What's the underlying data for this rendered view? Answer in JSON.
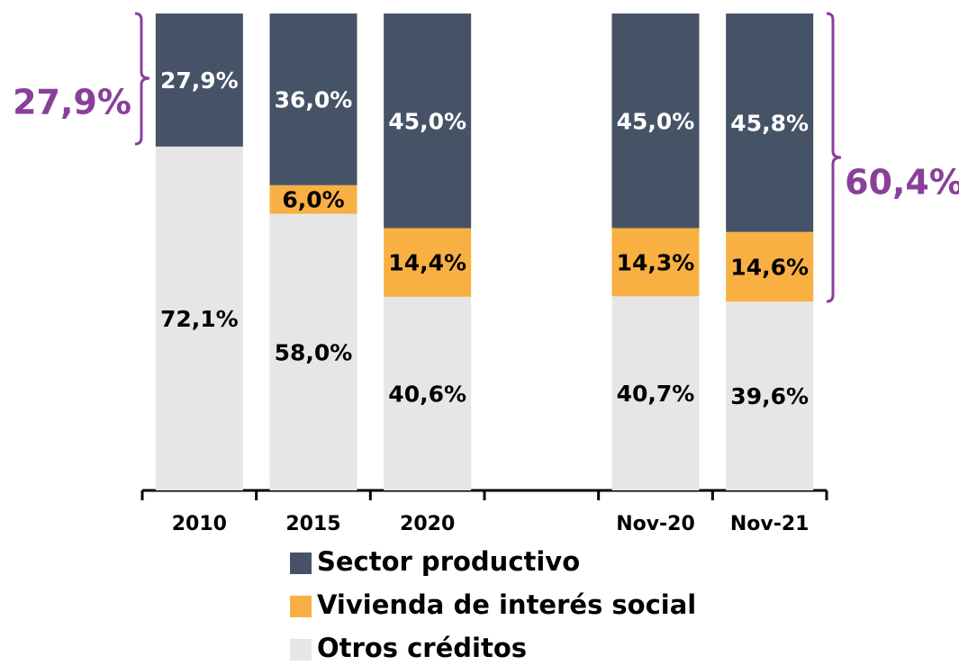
{
  "chart_data": {
    "type": "stacked_bar",
    "categories": [
      "2010",
      "2015",
      "2020",
      null,
      "Nov-20",
      "Nov-21"
    ],
    "series": [
      {
        "name": "Sector productivo",
        "color": "#465367",
        "values": [
          27.9,
          36.0,
          45.0,
          null,
          45.0,
          45.8
        ],
        "value_labels": [
          "27,9%",
          "36,0%",
          "45,0%",
          null,
          "45,0%",
          "45,8%"
        ]
      },
      {
        "name": "Vivienda de interés social",
        "color": "#f9b042",
        "values": [
          null,
          6.0,
          14.4,
          null,
          14.3,
          14.6
        ],
        "value_labels": [
          null,
          "6,0%",
          "14,4%",
          null,
          "14,3%",
          "14,6%"
        ]
      },
      {
        "name": "Otros créditos",
        "color": "#e6e6e6",
        "values": [
          72.1,
          58.0,
          40.6,
          null,
          40.7,
          39.6
        ],
        "value_labels": [
          "72,1%",
          "58,0%",
          "40,6%",
          null,
          "40,7%",
          "39,6%"
        ]
      }
    ],
    "ylim": [
      0,
      100
    ],
    "annotations": [
      {
        "text": "27,9%"
      },
      {
        "text": "60,4%"
      }
    ]
  }
}
